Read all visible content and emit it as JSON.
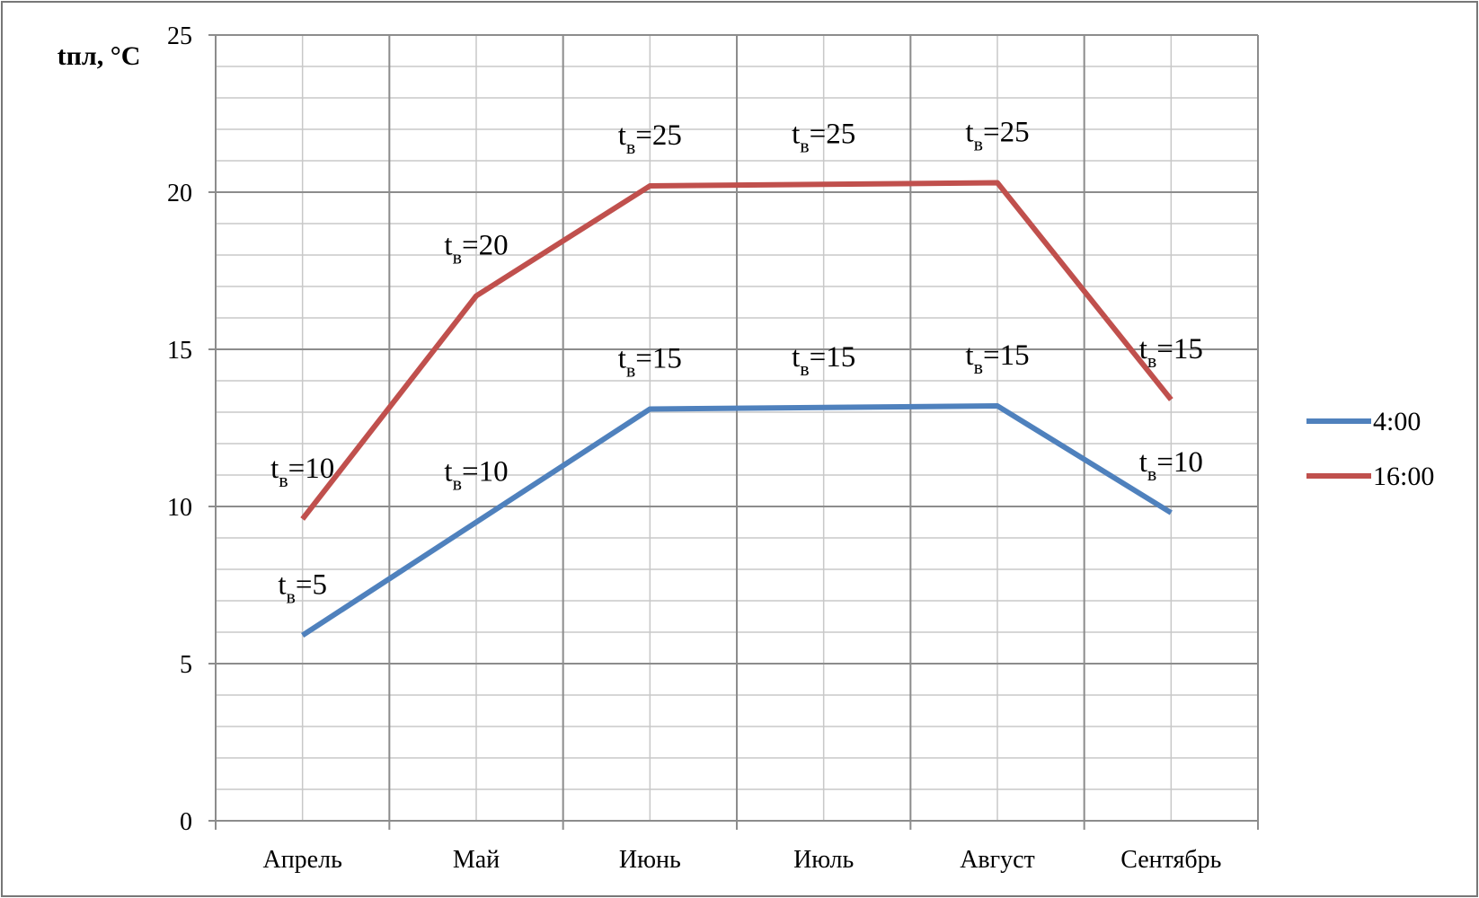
{
  "chart_data": {
    "type": "line",
    "y_label": "tпл, °C",
    "categories": [
      "Апрель",
      "Май",
      "Июнь",
      "Июль",
      "Август",
      "Сентябрь"
    ],
    "series": [
      {
        "name": "4:00",
        "color": "#4f81bd",
        "values": [
          5.9,
          9.5,
          13.1,
          13.15,
          13.2,
          9.8
        ],
        "point_labels": [
          "tв=5",
          "tв=10",
          "tв=15",
          "tв=15",
          "tв=15",
          "tв=10"
        ]
      },
      {
        "name": "16:00",
        "color": "#c0504d",
        "values": [
          9.6,
          16.7,
          20.2,
          20.25,
          20.3,
          13.4
        ],
        "point_labels": [
          "tв=10",
          "tв=20",
          "tв=25",
          "tв=25",
          "tв=25",
          "tв=15"
        ]
      }
    ],
    "ylim": [
      0,
      25
    ],
    "yticks": [
      0,
      5,
      10,
      15,
      20,
      25
    ],
    "minor_yticks": [
      1,
      2,
      3,
      4,
      6,
      7,
      8,
      9,
      11,
      12,
      13,
      14,
      16,
      17,
      18,
      19,
      21,
      22,
      23,
      24
    ],
    "grid": true,
    "legend": "right"
  }
}
